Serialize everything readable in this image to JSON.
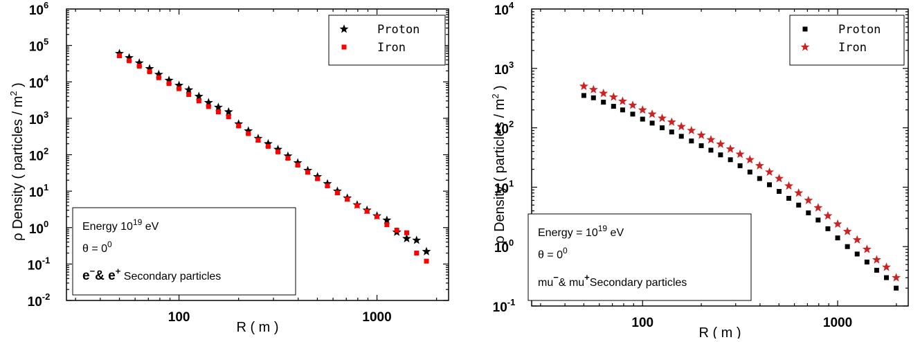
{
  "chart_data": [
    {
      "type": "scatter",
      "xscale": "log",
      "yscale": "log",
      "xlim": [
        27,
        2300
      ],
      "ylim": [
        0.01,
        1000000
      ],
      "xticks": [
        {
          "v": 100,
          "label": "100"
        },
        {
          "v": 1000,
          "label": "1000"
        }
      ],
      "yticks": [
        {
          "v": 0.01,
          "base": "10",
          "exp": "-2"
        },
        {
          "v": 0.1,
          "base": "10",
          "exp": "-1"
        },
        {
          "v": 1,
          "base": "10",
          "exp": "0"
        },
        {
          "v": 10,
          "base": "10",
          "exp": "1"
        },
        {
          "v": 100,
          "base": "10",
          "exp": "2"
        },
        {
          "v": 1000,
          "base": "10",
          "exp": "3"
        },
        {
          "v": 10000,
          "base": "10",
          "exp": "4"
        },
        {
          "v": 100000,
          "base": "10",
          "exp": "5"
        },
        {
          "v": 1000000,
          "base": "10",
          "exp": "6"
        }
      ],
      "xlabel": "R ( m )",
      "ylabel_prefix": "ρ Density ( particles / m",
      "ylabel_sup": "2",
      "ylabel_suffix": " )",
      "legend": "top-right",
      "annotation": {
        "energy_prefix": "Energy   10",
        "energy_exp": "19",
        "energy_suffix": " eV",
        "theta_prefix": "θ = 0",
        "theta_exp": "0",
        "particles_a": "e",
        "particles_a_sup": "−",
        "particles_mid": "& e",
        "particles_b_sup": "+",
        "particles_suffix": " Secondary particles"
      },
      "series": [
        {
          "name": "Proton",
          "marker": "star",
          "color": "#000000",
          "x": [
            50,
            56,
            63,
            71,
            79,
            89,
            100,
            112,
            126,
            141,
            158,
            178,
            200,
            224,
            251,
            282,
            316,
            355,
            398,
            447,
            501,
            562,
            631,
            708,
            794,
            891,
            1000,
            1122,
            1259,
            1413,
            1585,
            1778
          ],
          "y": [
            60000,
            46000,
            33000,
            23000,
            16000,
            11000,
            8000,
            6000,
            4000,
            2700,
            2000,
            1500,
            700,
            450,
            280,
            200,
            140,
            92,
            60,
            37,
            25,
            16,
            10,
            6.5,
            4.2,
            3.0,
            2.1,
            1.6,
            0.75,
            0.5,
            0.45,
            0.22
          ]
        },
        {
          "name": "Iron",
          "marker": "square",
          "color": "#ff0000",
          "x": [
            50,
            56,
            63,
            71,
            79,
            89,
            100,
            112,
            126,
            141,
            158,
            178,
            200,
            224,
            251,
            282,
            316,
            355,
            398,
            447,
            501,
            562,
            631,
            708,
            794,
            891,
            1000,
            1122,
            1259,
            1413,
            1585,
            1778
          ],
          "y": [
            52000,
            38000,
            27000,
            19000,
            13000,
            9000,
            6500,
            4500,
            3000,
            2100,
            1500,
            1100,
            620,
            380,
            250,
            170,
            120,
            80,
            52,
            33,
            22,
            14,
            9,
            6,
            4,
            2.8,
            2.0,
            1.2,
            0.85,
            0.72,
            0.2,
            0.12
          ]
        }
      ]
    },
    {
      "type": "scatter",
      "xscale": "log",
      "yscale": "log",
      "xlim": [
        27,
        2300
      ],
      "ylim": [
        0.1,
        10000
      ],
      "xticks": [
        {
          "v": 100,
          "label": "100"
        },
        {
          "v": 1000,
          "label": "1000"
        }
      ],
      "yticks": [
        {
          "v": 0.1,
          "base": "10",
          "exp": "-1"
        },
        {
          "v": 1,
          "base": "10",
          "exp": "0"
        },
        {
          "v": 10,
          "base": "10",
          "exp": "1"
        },
        {
          "v": 100,
          "base": "10",
          "exp": "2"
        },
        {
          "v": 1000,
          "base": "10",
          "exp": "3"
        },
        {
          "v": 10000,
          "base": "10",
          "exp": "4"
        }
      ],
      "xlabel": "R ( m )",
      "ylabel_prefix": "ρ Density ( particles / m",
      "ylabel_sup": "2",
      "ylabel_suffix": " )",
      "legend": "top-right",
      "annotation": {
        "energy_prefix": "Energy = 10",
        "energy_exp": "19",
        "energy_suffix": " eV",
        "theta_prefix": "θ = 0",
        "theta_exp": "0",
        "particles_a": "mu",
        "particles_a_sup": "−",
        "particles_mid": "& mu",
        "particles_b_sup": "+",
        "particles_suffix": "Secondary particles"
      },
      "series": [
        {
          "name": "Proton",
          "marker": "square",
          "color": "#000000",
          "x": [
            50,
            56,
            63,
            71,
            79,
            89,
            100,
            112,
            126,
            141,
            158,
            178,
            200,
            224,
            251,
            282,
            316,
            355,
            398,
            447,
            501,
            562,
            631,
            708,
            794,
            891,
            1000,
            1122,
            1259,
            1413,
            1585,
            1778,
            1995
          ],
          "y": [
            350,
            320,
            270,
            230,
            200,
            170,
            140,
            120,
            100,
            85,
            72,
            60,
            50,
            42,
            35,
            29,
            23,
            18,
            14,
            11,
            8.5,
            6.5,
            5,
            3.7,
            2.8,
            2.0,
            1.4,
            1.0,
            0.75,
            0.55,
            0.4,
            0.3,
            0.2
          ]
        },
        {
          "name": "Iron",
          "marker": "star",
          "color": "#cc2222",
          "x": [
            50,
            56,
            63,
            71,
            79,
            89,
            100,
            112,
            126,
            141,
            158,
            178,
            200,
            224,
            251,
            282,
            316,
            355,
            398,
            447,
            501,
            562,
            631,
            708,
            794,
            891,
            1000,
            1122,
            1259,
            1413,
            1585,
            1778,
            1995
          ],
          "y": [
            500,
            440,
            380,
            330,
            280,
            240,
            200,
            170,
            145,
            125,
            105,
            90,
            75,
            63,
            53,
            44,
            36,
            29,
            23,
            18,
            14,
            10.5,
            8,
            6,
            4.5,
            3.3,
            2.4,
            1.8,
            1.3,
            0.9,
            0.6,
            0.45,
            0.3
          ]
        }
      ]
    }
  ]
}
